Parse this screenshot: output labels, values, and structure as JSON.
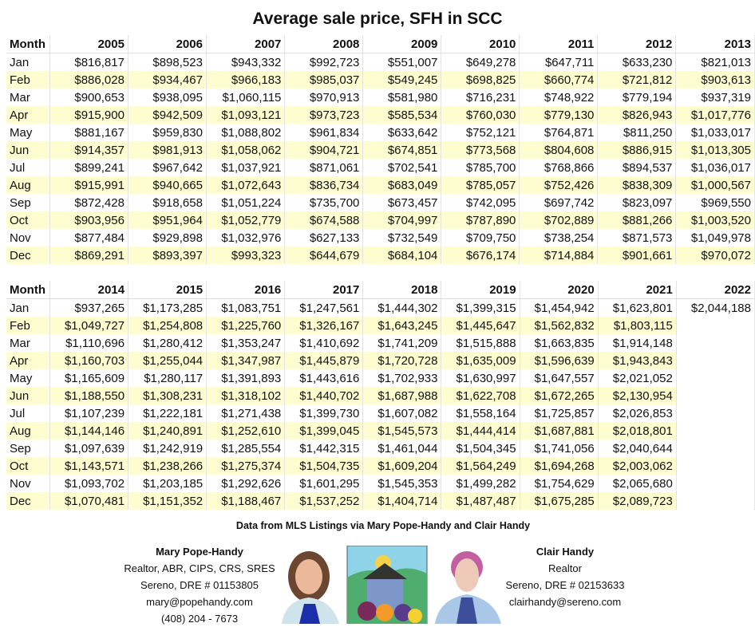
{
  "title": "Average sale price, SFH in SCC",
  "months": [
    "Jan",
    "Feb",
    "Mar",
    "Apr",
    "May",
    "Jun",
    "Jul",
    "Aug",
    "Sep",
    "Oct",
    "Nov",
    "Dec"
  ],
  "month_header": "Month",
  "table1": {
    "years": [
      "2005",
      "2006",
      "2007",
      "2008",
      "2009",
      "2010",
      "2011",
      "2012",
      "2013"
    ],
    "rows": [
      [
        "$816,817",
        "$898,523",
        "$943,332",
        "$992,723",
        "$551,007",
        "$649,278",
        "$647,711",
        "$633,230",
        "$821,013"
      ],
      [
        "$886,028",
        "$934,467",
        "$966,183",
        "$985,037",
        "$549,245",
        "$698,825",
        "$660,774",
        "$721,812",
        "$903,613"
      ],
      [
        "$900,653",
        "$938,095",
        "$1,060,115",
        "$970,913",
        "$581,980",
        "$716,231",
        "$748,922",
        "$779,194",
        "$937,319"
      ],
      [
        "$915,900",
        "$942,509",
        "$1,093,121",
        "$973,723",
        "$585,534",
        "$760,030",
        "$779,130",
        "$826,943",
        "$1,017,776"
      ],
      [
        "$881,167",
        "$959,830",
        "$1,088,802",
        "$961,834",
        "$633,642",
        "$752,121",
        "$764,871",
        "$811,250",
        "$1,033,017"
      ],
      [
        "$914,357",
        "$981,913",
        "$1,058,062",
        "$904,721",
        "$674,851",
        "$773,568",
        "$804,608",
        "$886,915",
        "$1,013,305"
      ],
      [
        "$899,241",
        "$967,642",
        "$1,037,921",
        "$871,061",
        "$702,541",
        "$785,700",
        "$768,866",
        "$894,537",
        "$1,036,017"
      ],
      [
        "$915,991",
        "$940,665",
        "$1,072,643",
        "$836,734",
        "$683,049",
        "$785,057",
        "$752,426",
        "$838,309",
        "$1,000,567"
      ],
      [
        "$872,428",
        "$918,658",
        "$1,051,224",
        "$735,700",
        "$673,457",
        "$742,095",
        "$697,742",
        "$823,097",
        "$969,550"
      ],
      [
        "$903,956",
        "$951,964",
        "$1,052,779",
        "$674,588",
        "$704,997",
        "$787,890",
        "$702,889",
        "$881,266",
        "$1,003,520"
      ],
      [
        "$877,484",
        "$929,898",
        "$1,032,976",
        "$627,133",
        "$732,549",
        "$709,750",
        "$738,254",
        "$871,573",
        "$1,049,978"
      ],
      [
        "$869,291",
        "$893,397",
        "$993,323",
        "$644,679",
        "$684,104",
        "$676,174",
        "$714,884",
        "$901,661",
        "$970,072"
      ]
    ]
  },
  "table2": {
    "years": [
      "2014",
      "2015",
      "2016",
      "2017",
      "2018",
      "2019",
      "2020",
      "2021",
      "2022"
    ],
    "rows": [
      [
        "$937,265",
        "$1,173,285",
        "$1,083,751",
        "$1,247,561",
        "$1,444,302",
        "$1,399,315",
        "$1,454,942",
        "$1,623,801",
        "$2,044,188"
      ],
      [
        "$1,049,727",
        "$1,254,808",
        "$1,225,760",
        "$1,326,167",
        "$1,643,245",
        "$1,445,647",
        "$1,562,832",
        "$1,803,115",
        ""
      ],
      [
        "$1,110,696",
        "$1,280,412",
        "$1,353,247",
        "$1,410,692",
        "$1,741,209",
        "$1,515,888",
        "$1,663,835",
        "$1,914,148",
        ""
      ],
      [
        "$1,160,703",
        "$1,255,044",
        "$1,347,987",
        "$1,445,879",
        "$1,720,728",
        "$1,635,009",
        "$1,596,639",
        "$1,943,843",
        ""
      ],
      [
        "$1,165,609",
        "$1,280,117",
        "$1,391,893",
        "$1,443,616",
        "$1,702,933",
        "$1,630,997",
        "$1,647,557",
        "$2,021,052",
        ""
      ],
      [
        "$1,188,550",
        "$1,308,231",
        "$1,318,102",
        "$1,440,702",
        "$1,687,988",
        "$1,622,708",
        "$1,672,265",
        "$2,130,954",
        ""
      ],
      [
        "$1,107,239",
        "$1,222,181",
        "$1,271,438",
        "$1,399,730",
        "$1,607,082",
        "$1,558,164",
        "$1,725,857",
        "$2,026,853",
        ""
      ],
      [
        "$1,144,146",
        "$1,240,891",
        "$1,252,610",
        "$1,399,045",
        "$1,545,573",
        "$1,444,414",
        "$1,687,881",
        "$2,018,801",
        ""
      ],
      [
        "$1,097,639",
        "$1,242,919",
        "$1,285,554",
        "$1,442,315",
        "$1,461,044",
        "$1,504,345",
        "$1,741,056",
        "$2,040,644",
        ""
      ],
      [
        "$1,143,571",
        "$1,238,266",
        "$1,275,374",
        "$1,504,735",
        "$1,609,204",
        "$1,564,249",
        "$1,694,268",
        "$2,003,062",
        ""
      ],
      [
        "$1,093,702",
        "$1,203,185",
        "$1,292,626",
        "$1,601,295",
        "$1,545,353",
        "$1,499,282",
        "$1,754,629",
        "$2,065,680",
        ""
      ],
      [
        "$1,070,481",
        "$1,151,352",
        "$1,188,467",
        "$1,537,252",
        "$1,404,714",
        "$1,487,487",
        "$1,675,285",
        "$2,089,723",
        ""
      ]
    ]
  },
  "stripe_color": "#fdfdcf",
  "footer": {
    "credit": "Data from MLS Listings via Mary Pope-Handy and Clair Handy",
    "agent1": {
      "name": "Mary Pope-Handy",
      "lines": [
        "Realtor, ABR, CIPS, CRS, SRES",
        "Sereno, DRE # 01153805",
        "mary@popehandy.com",
        "(408) 204 - 7673"
      ]
    },
    "agent2": {
      "name": "Clair Handy",
      "lines": [
        "Realtor",
        "Sereno, DRE # 02153633",
        "clairhandy@sereno.com"
      ]
    }
  }
}
